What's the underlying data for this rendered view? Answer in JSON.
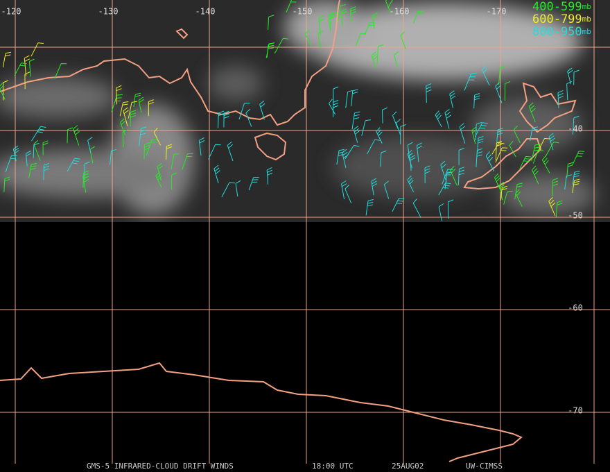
{
  "map": {
    "longitude_labels": [
      -120,
      -130,
      -140,
      -150,
      -160,
      -170
    ],
    "latitude_labels": [
      -40,
      -50,
      -60,
      -70
    ],
    "legend": [
      {
        "range": "400-599",
        "unit": "mb",
        "color": "#22ee22"
      },
      {
        "range": "600-799",
        "unit": "mb",
        "color": "#eeee22"
      },
      {
        "range": "800-950",
        "unit": "mb",
        "color": "#22dddd"
      }
    ],
    "footer": [
      "GMS-5 INFRARED-CLOUD DRIFT WINDS",
      "18:00 UTC",
      "25AUG02",
      "UW-CIMSS"
    ]
  }
}
